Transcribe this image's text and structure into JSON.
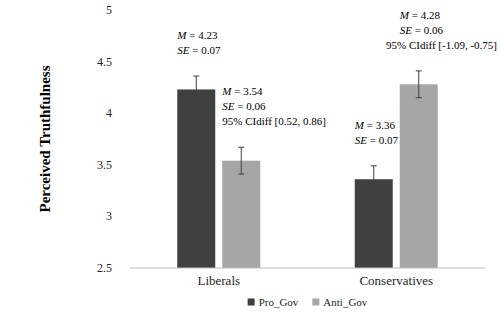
{
  "chart_data": {
    "type": "bar",
    "y_label": "Perceived Truthfulness",
    "categories": [
      "Liberals",
      "Conservatives"
    ],
    "series": [
      {
        "name": "Pro_Gov",
        "color": "#404040",
        "values": [
          4.23,
          3.36
        ],
        "errors": [
          0.13,
          0.13
        ],
        "annotations": [
          [
            "M = 4.23",
            "SE = 0.07"
          ],
          [
            "M = 3.36",
            "SE = 0.07"
          ]
        ]
      },
      {
        "name": "Anti_Gov",
        "color": "#a6a6a6",
        "values": [
          3.54,
          4.28
        ],
        "errors": [
          0.13,
          0.13
        ],
        "annotations": [
          [
            "M = 3.54",
            "SE = 0.06",
            "95% CIdiff [0.52, 0.86]"
          ],
          [
            "M = 4.28",
            "SE = 0.06",
            "95% CIdiff [-1.09, -0.75]"
          ]
        ]
      }
    ],
    "ylim": [
      2.5,
      5
    ],
    "yticks": [
      2.5,
      3,
      3.5,
      4,
      4.5,
      5
    ],
    "grid": false,
    "legend": "bottom"
  }
}
